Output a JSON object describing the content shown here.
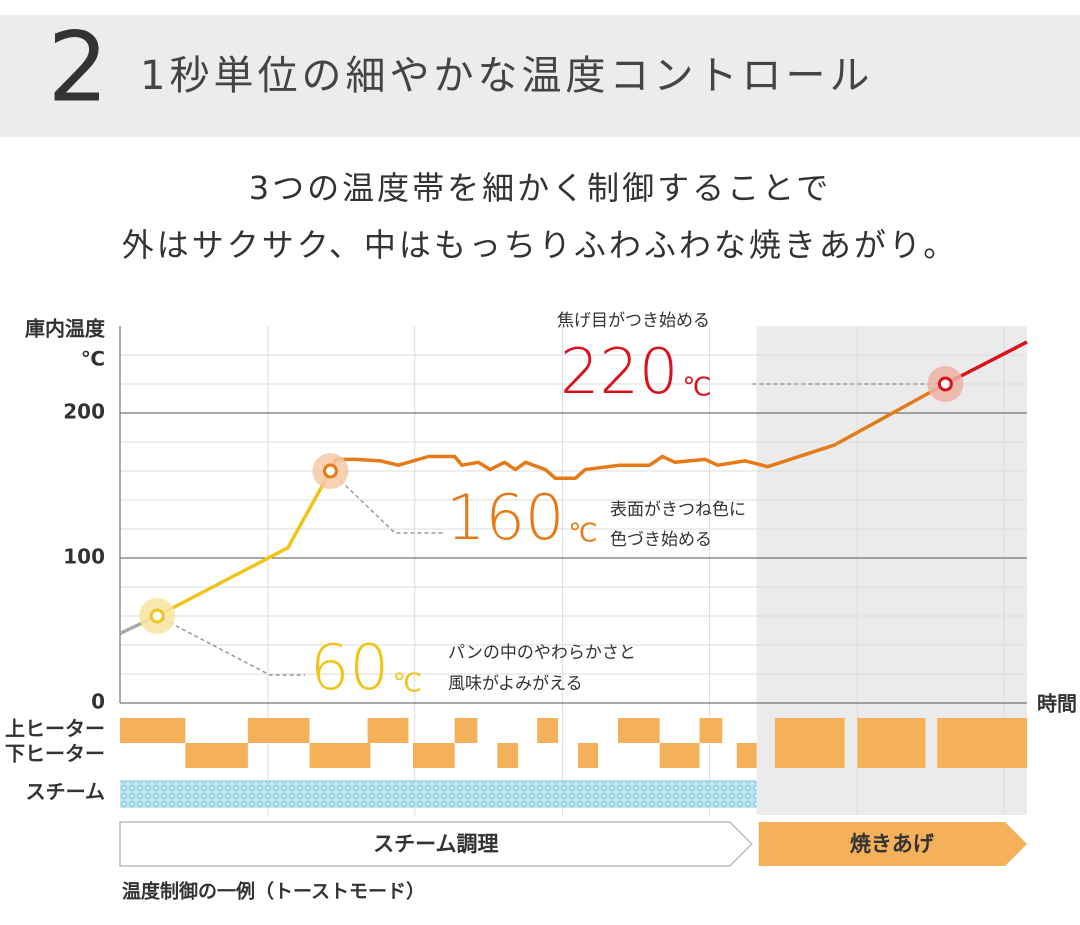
{
  "header": {
    "number": "2",
    "title": "1秒単位の細やかな温度コントロール"
  },
  "subtitle": [
    "3つの温度帯を細かく制御することで",
    "外はサクサク、中はもっちりふわふわな焼きあがり。"
  ],
  "chart_data": {
    "type": "line",
    "ylabel": [
      "庫内温度",
      "℃"
    ],
    "xlabel": "時間",
    "ylim": [
      0,
      260
    ],
    "yticks": [
      0,
      100,
      200
    ],
    "minor_yticks": [
      20,
      40,
      60,
      80,
      120,
      140,
      160,
      180,
      220,
      240
    ],
    "xlim": [
      0,
      100
    ],
    "xgrid": [
      16.3,
      32.5,
      48.8,
      65.0,
      81.3,
      97.5
    ],
    "grid": true,
    "series": [
      {
        "color": "#a9a9a9",
        "x": [
          0,
          4.1
        ],
        "values": [
          48,
          60
        ]
      },
      {
        "color": "#f0c419",
        "x": [
          4.1,
          18.5,
          23.2
        ],
        "values": [
          60,
          107,
          160
        ]
      },
      {
        "color": "#e57a17",
        "x": [
          23.2,
          23.8,
          26.0,
          28.7,
          30.7,
          34.0,
          36.9,
          37.7,
          39.5,
          40.8,
          42.4,
          43.6,
          44.7,
          46.9,
          48.0,
          50.2,
          51.3,
          55.1,
          58.4,
          59.8,
          61.2,
          64.5,
          65.9,
          68.9,
          71.4,
          78.8,
          91.0
        ],
        "values": [
          160,
          168,
          168,
          167,
          164,
          170,
          170,
          164,
          166,
          161,
          166,
          161,
          166,
          161,
          155,
          155,
          161,
          164,
          164,
          170,
          166,
          168,
          164,
          167,
          163,
          178,
          220
        ]
      },
      {
        "color": "#d7141d",
        "x": [
          91.0,
          100
        ],
        "values": [
          220,
          249
        ]
      }
    ],
    "highlights": [
      {
        "x": 4.1,
        "value": 60,
        "label": "60",
        "unit": "℃",
        "color": "#f0c419",
        "halo": "#f8e4a0",
        "note": [
          "パンの中のやわらかさと",
          "風味がよみがえる"
        ]
      },
      {
        "x": 23.2,
        "value": 160,
        "label": "160",
        "unit": "℃",
        "color": "#e57a17",
        "halo": "#f5c9a4",
        "note": [
          "表面がきつね色に",
          "色づき始める"
        ]
      },
      {
        "x": 91.0,
        "value": 220,
        "label": "220",
        "unit": "℃",
        "color": "#d7141d",
        "halo": "#eeb1a6",
        "note": [
          "焦げ目がつき始める"
        ]
      }
    ],
    "heater_color": "#f5b05a",
    "heater_rows": [
      {
        "name": "上ヒーター",
        "segments": [
          [
            0,
            7.2
          ],
          [
            14.1,
            20.9
          ],
          [
            27.3,
            31.8
          ],
          [
            36.9,
            39.4
          ],
          [
            46.0,
            48.3
          ],
          [
            54.9,
            59.5
          ],
          [
            63.9,
            66.4
          ]
        ]
      },
      {
        "name": "下ヒーター",
        "segments": [
          [
            7.2,
            14.1
          ],
          [
            20.9,
            27.6
          ],
          [
            32.3,
            36.9
          ],
          [
            41.6,
            43.9
          ],
          [
            50.5,
            52.7
          ],
          [
            59.5,
            63.9
          ],
          [
            68.0,
            70.2
          ]
        ]
      }
    ],
    "full_segments": [
      [
        72.2,
        79.9
      ],
      [
        81.3,
        88.8
      ],
      [
        90.1,
        100
      ]
    ],
    "steam": {
      "name": "スチーム",
      "range": [
        0,
        70.2
      ]
    },
    "phases": [
      {
        "name": "スチーム調理",
        "range": [
          0,
          70.2
        ]
      },
      {
        "name": "焼きあげ",
        "range": [
          70.2,
          100
        ]
      }
    ],
    "caption": "温度制御の一例（トーストモード）"
  }
}
